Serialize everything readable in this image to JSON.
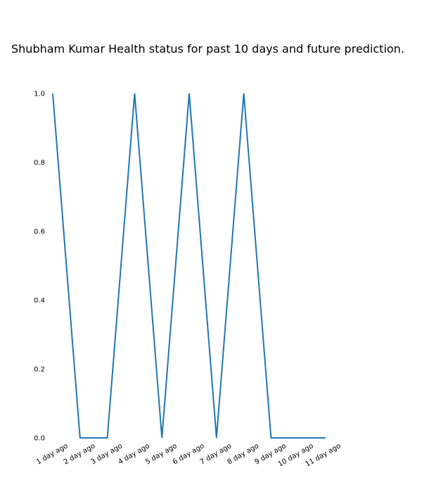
{
  "chart_data": {
    "type": "line",
    "title": "Shubham Kumar Health status for past 10 days and future prediction.",
    "xlabel": "",
    "ylabel": "",
    "categories": [
      "1 day ago",
      "2 day ago",
      "3 day ago",
      "4 day ago",
      "5 day ago",
      "6 day ago",
      "7 day ago",
      "8 day ago",
      "9 day ago",
      "10 day ago",
      "11 day ago"
    ],
    "series": [
      {
        "values": [
          1.0,
          0.0,
          0.0,
          1.0,
          0.0,
          1.0,
          0.0,
          1.0,
          0.0,
          0.0,
          0.0
        ]
      }
    ],
    "yticks": [
      "0.0",
      "0.2",
      "0.4",
      "0.6",
      "0.8",
      "1.0"
    ],
    "ylim": [
      0,
      1
    ],
    "grid": false,
    "line_color": "#1f77b4"
  }
}
